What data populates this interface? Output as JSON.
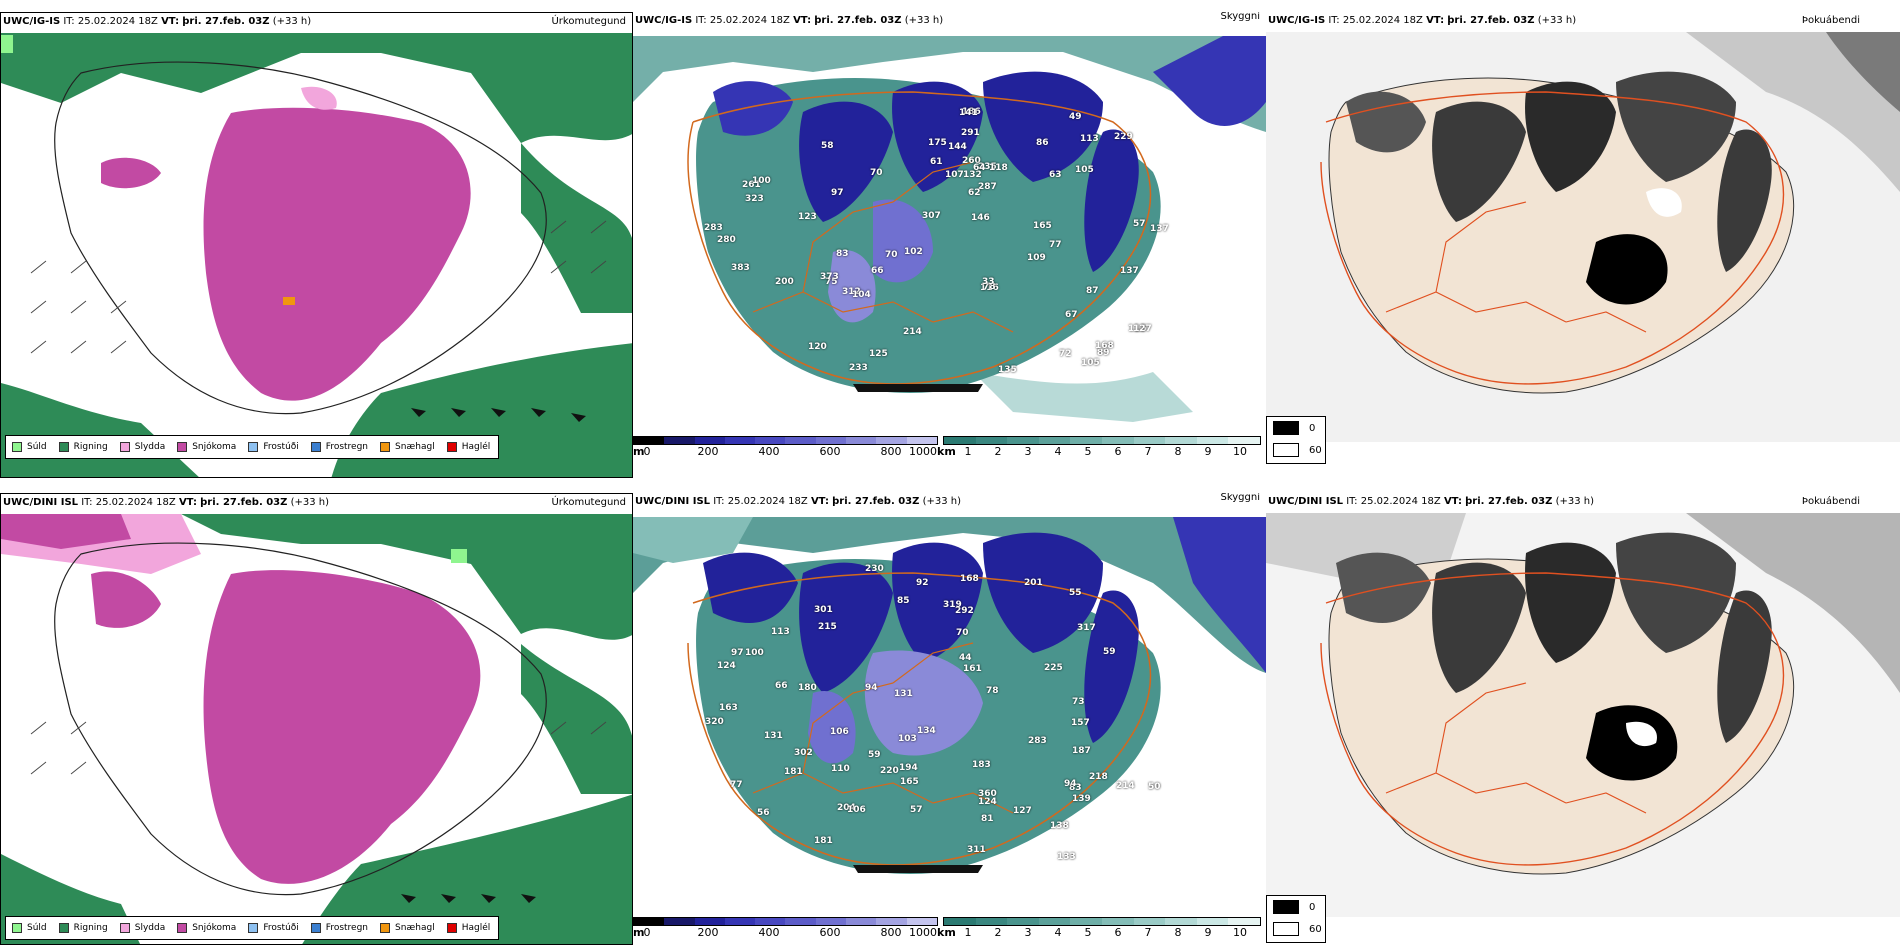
{
  "issue_label": "IT:",
  "issue_time": "25.02.2024 18Z",
  "valid_label": "VT:",
  "valid_time": "þri. 27.feb. 03Z",
  "lead": "(+33 h)",
  "rows": [
    {
      "model": "UWC/IG-IS"
    },
    {
      "model": "UWC/DINI ISL"
    }
  ],
  "panel_titles": {
    "precip": "Úrkomutegund",
    "visibility": "Skyggni",
    "fog": "Þokuábendi"
  },
  "precip_legend": [
    {
      "label": "Súld",
      "color": "#8ff58f"
    },
    {
      "label": "Rigning",
      "color": "#2e8b57"
    },
    {
      "label": "Slydda",
      "color": "#f2a6dc"
    },
    {
      "label": "Snjókoma",
      "color": "#c24aa3"
    },
    {
      "label": "Frostúði",
      "color": "#8ec1f1"
    },
    {
      "label": "Frostregn",
      "color": "#3b7fd0"
    },
    {
      "label": "Snæhagl",
      "color": "#f0960f"
    },
    {
      "label": "Haglél",
      "color": "#e00000"
    }
  ],
  "cloud_base_bar": {
    "unit": "m",
    "ticks": [
      "0",
      "200",
      "400",
      "600",
      "800",
      "1000"
    ],
    "colors": [
      "#000000",
      "#181868",
      "#22229a",
      "#3535b4",
      "#4848c0",
      "#5c5cc8",
      "#7070d0",
      "#8a8ad8",
      "#a4a4e2",
      "#c4c4ee"
    ]
  },
  "visibility_bar": {
    "unit": "km",
    "ticks": [
      "1",
      "2",
      "3",
      "4",
      "5",
      "6",
      "7",
      "8",
      "9",
      "10"
    ],
    "colors": [
      "#2b7a72",
      "#3a8780",
      "#4a948d",
      "#5ca19a",
      "#6fafa8",
      "#84bdb7",
      "#9acbc6",
      "#b2d9d5",
      "#cbe8e5",
      "#e6f4f2"
    ]
  },
  "fog_legend": [
    {
      "value": "0",
      "color": "#000000"
    },
    {
      "value": "60",
      "color": "#ffffff"
    }
  ],
  "cloud_labels_top": [
    "116",
    "113",
    "123",
    "109",
    "125",
    "89",
    "97",
    "291",
    "78",
    "63",
    "49",
    "70",
    "75",
    "77",
    "33",
    "102",
    "105",
    "280",
    "287",
    "312",
    "283",
    "261",
    "186",
    "168",
    "120",
    "115",
    "70",
    "86",
    "107",
    "105",
    "83",
    "165",
    "383",
    "307",
    "260",
    "137",
    "214",
    "135",
    "233",
    "104",
    "61",
    "100",
    "72",
    "200",
    "175",
    "235",
    "144",
    "137",
    "132",
    "141",
    "118",
    "64",
    "62",
    "67",
    "57",
    "66",
    "87",
    "58",
    "323",
    "127",
    "146",
    "229",
    "373"
  ],
  "cloud_labels_bottom": [
    "124",
    "103",
    "215",
    "113",
    "133",
    "317",
    "83",
    "77",
    "59",
    "57",
    "56",
    "55",
    "106",
    "85",
    "78",
    "59",
    "81",
    "100",
    "161",
    "168",
    "201",
    "230",
    "360",
    "157",
    "124",
    "139",
    "181",
    "163",
    "220",
    "320",
    "301",
    "194",
    "292",
    "319",
    "218",
    "204",
    "225",
    "311",
    "73",
    "50",
    "131",
    "66",
    "94",
    "92",
    "97",
    "110",
    "138",
    "165",
    "302",
    "283",
    "70",
    "180",
    "134",
    "127",
    "183",
    "187",
    "214",
    "181",
    "131",
    "44",
    "106",
    "94"
  ]
}
